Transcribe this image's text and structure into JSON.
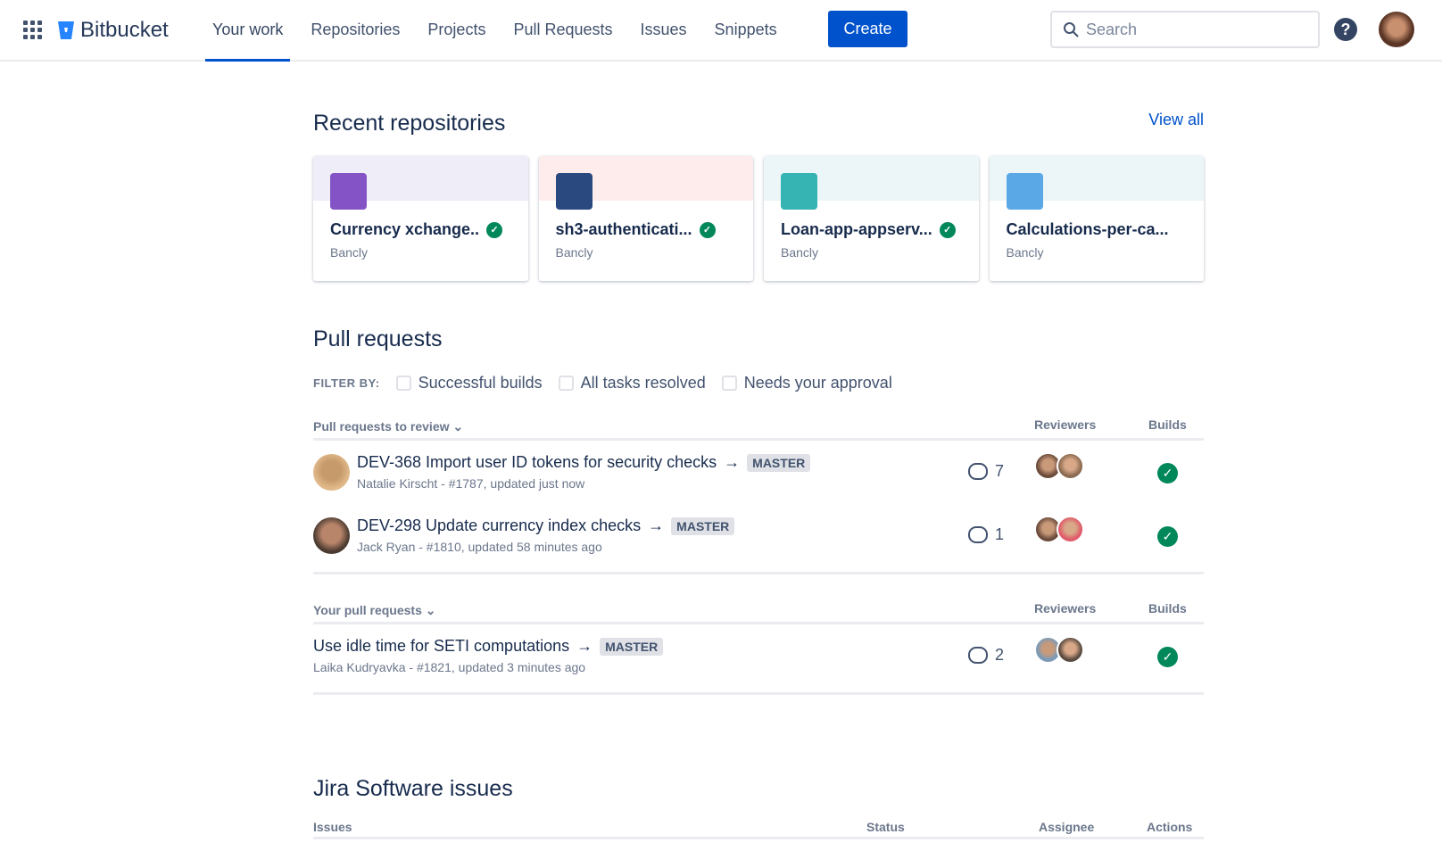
{
  "nav": {
    "brand": "Bitbucket",
    "items": [
      "Your work",
      "Repositories",
      "Projects",
      "Pull Requests",
      "Issues",
      "Snippets"
    ],
    "active": "Your work",
    "create": "Create",
    "search_placeholder": "Search",
    "help": "?"
  },
  "recent": {
    "title": "Recent repositories",
    "view_all": "View all",
    "repos": [
      {
        "name": "Currency xchange..",
        "owner": "Bancly",
        "built": true,
        "band": "#efedf8",
        "icon": "#8454c6"
      },
      {
        "name": "sh3-authenticati...",
        "owner": "Bancly",
        "built": true,
        "band": "#fdeceb",
        "icon": "#2a4a7f"
      },
      {
        "name": "Loan-app-appserv...",
        "owner": "Bancly",
        "built": true,
        "band": "#ecf5f8",
        "icon": "#36b3b3"
      },
      {
        "name": "Calculations-per-ca...",
        "owner": "Bancly",
        "built": false,
        "band": "#ecf5f8",
        "icon": "#5aa9e6"
      }
    ]
  },
  "pull_requests": {
    "title": "Pull requests",
    "filter_label": "FILTER BY:",
    "filters": [
      "Successful builds",
      "All tasks resolved",
      "Needs your approval"
    ],
    "review": {
      "heading": "Pull requests to review",
      "reviewers": "Reviewers",
      "builds": "Builds",
      "rows": [
        {
          "title": "DEV-368 Import user ID tokens for security checks",
          "branch": "MASTER",
          "meta": "Natalie Kirscht - #1787, updated just now",
          "comments": "7"
        },
        {
          "title": "DEV-298 Update currency index checks",
          "branch": "MASTER",
          "meta": "Jack Ryan - #1810, updated 58 minutes ago",
          "comments": "1"
        }
      ]
    },
    "yours": {
      "heading": "Your pull requests",
      "reviewers": "Reviewers",
      "builds": "Builds",
      "rows": [
        {
          "title": "Use idle time for SETI computations",
          "branch": "MASTER",
          "meta": "Laika Kudryavka - #1821, updated 3 minutes ago",
          "comments": "2"
        }
      ]
    }
  },
  "jira": {
    "title": "Jira Software issues",
    "columns": [
      "Issues",
      "Status",
      "Assignee",
      "Actions"
    ]
  },
  "colors": {
    "accent": "#0052cc",
    "success": "#00875a"
  }
}
